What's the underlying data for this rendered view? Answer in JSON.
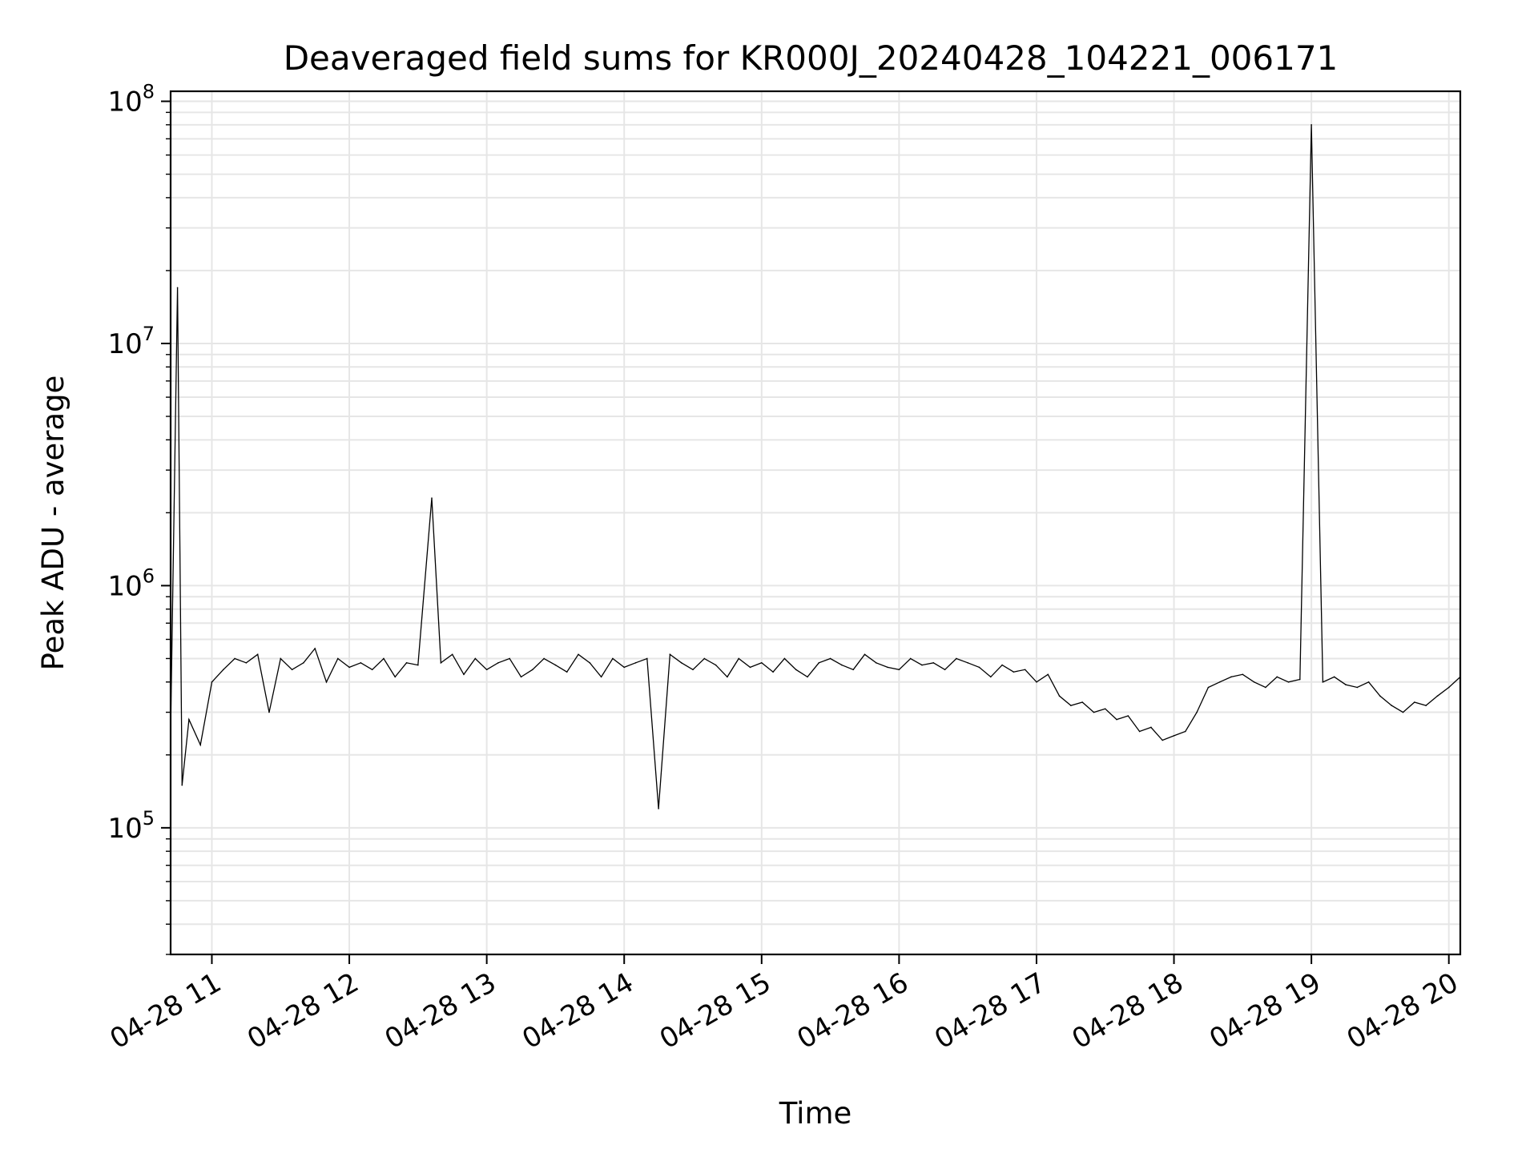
{
  "chart_data": {
    "type": "line",
    "title": "Deaveraged field sums for KR000J_20240428_104221_006171",
    "xlabel": "Time",
    "ylabel": "Peak ADU - average",
    "y_scale": "log",
    "ylim": [
      30000,
      110000000
    ],
    "xlim": [
      "2024-04-28T10:42",
      "2024-04-28T20:05"
    ],
    "grid": true,
    "x_ticks": [
      "04-28 11",
      "04-28 12",
      "04-28 13",
      "04-28 14",
      "04-28 15",
      "04-28 16",
      "04-28 17",
      "04-28 18",
      "04-28 19",
      "04-28 20"
    ],
    "x_tick_times": [
      "2024-04-28T11:00",
      "2024-04-28T12:00",
      "2024-04-28T13:00",
      "2024-04-28T14:00",
      "2024-04-28T15:00",
      "2024-04-28T16:00",
      "2024-04-28T17:00",
      "2024-04-28T18:00",
      "2024-04-28T19:00",
      "2024-04-28T20:00"
    ],
    "y_ticks": [
      {
        "base": "10",
        "exp": "5",
        "value": 100000
      },
      {
        "base": "10",
        "exp": "6",
        "value": 1000000
      },
      {
        "base": "10",
        "exp": "7",
        "value": 10000000
      },
      {
        "base": "10",
        "exp": "8",
        "value": 100000000
      }
    ],
    "series": [
      {
        "color": "#000000",
        "x": [
          "2024-04-28T10:42",
          "2024-04-28T10:45",
          "2024-04-28T10:47",
          "2024-04-28T10:50",
          "2024-04-28T10:55",
          "2024-04-28T11:00",
          "2024-04-28T11:05",
          "2024-04-28T11:10",
          "2024-04-28T11:15",
          "2024-04-28T11:20",
          "2024-04-28T11:25",
          "2024-04-28T11:30",
          "2024-04-28T11:35",
          "2024-04-28T11:40",
          "2024-04-28T11:45",
          "2024-04-28T11:50",
          "2024-04-28T11:55",
          "2024-04-28T12:00",
          "2024-04-28T12:05",
          "2024-04-28T12:10",
          "2024-04-28T12:15",
          "2024-04-28T12:20",
          "2024-04-28T12:25",
          "2024-04-28T12:30",
          "2024-04-28T12:36",
          "2024-04-28T12:40",
          "2024-04-28T12:45",
          "2024-04-28T12:50",
          "2024-04-28T12:55",
          "2024-04-28T13:00",
          "2024-04-28T13:05",
          "2024-04-28T13:10",
          "2024-04-28T13:15",
          "2024-04-28T13:20",
          "2024-04-28T13:25",
          "2024-04-28T13:30",
          "2024-04-28T13:35",
          "2024-04-28T13:40",
          "2024-04-28T13:45",
          "2024-04-28T13:50",
          "2024-04-28T13:55",
          "2024-04-28T14:00",
          "2024-04-28T14:05",
          "2024-04-28T14:10",
          "2024-04-28T14:15",
          "2024-04-28T14:20",
          "2024-04-28T14:25",
          "2024-04-28T14:30",
          "2024-04-28T14:35",
          "2024-04-28T14:40",
          "2024-04-28T14:45",
          "2024-04-28T14:50",
          "2024-04-28T14:55",
          "2024-04-28T15:00",
          "2024-04-28T15:05",
          "2024-04-28T15:10",
          "2024-04-28T15:15",
          "2024-04-28T15:20",
          "2024-04-28T15:25",
          "2024-04-28T15:30",
          "2024-04-28T15:35",
          "2024-04-28T15:40",
          "2024-04-28T15:45",
          "2024-04-28T15:50",
          "2024-04-28T15:55",
          "2024-04-28T16:00",
          "2024-04-28T16:05",
          "2024-04-28T16:10",
          "2024-04-28T16:15",
          "2024-04-28T16:20",
          "2024-04-28T16:25",
          "2024-04-28T16:30",
          "2024-04-28T16:35",
          "2024-04-28T16:40",
          "2024-04-28T16:45",
          "2024-04-28T16:50",
          "2024-04-28T16:55",
          "2024-04-28T17:00",
          "2024-04-28T17:05",
          "2024-04-28T17:10",
          "2024-04-28T17:15",
          "2024-04-28T17:20",
          "2024-04-28T17:25",
          "2024-04-28T17:30",
          "2024-04-28T17:35",
          "2024-04-28T17:40",
          "2024-04-28T17:45",
          "2024-04-28T17:50",
          "2024-04-28T17:55",
          "2024-04-28T18:00",
          "2024-04-28T18:05",
          "2024-04-28T18:10",
          "2024-04-28T18:15",
          "2024-04-28T18:20",
          "2024-04-28T18:25",
          "2024-04-28T18:30",
          "2024-04-28T18:35",
          "2024-04-28T18:40",
          "2024-04-28T18:45",
          "2024-04-28T18:50",
          "2024-04-28T18:55",
          "2024-04-28T19:00",
          "2024-04-28T19:05",
          "2024-04-28T19:10",
          "2024-04-28T19:15",
          "2024-04-28T19:20",
          "2024-04-28T19:25",
          "2024-04-28T19:30",
          "2024-04-28T19:35",
          "2024-04-28T19:40",
          "2024-04-28T19:45",
          "2024-04-28T19:50",
          "2024-04-28T19:55",
          "2024-04-28T20:00",
          "2024-04-28T20:05"
        ],
        "values": [
          250000,
          17000000,
          150000,
          280000,
          220000,
          400000,
          450000,
          500000,
          480000,
          520000,
          300000,
          500000,
          450000,
          480000,
          550000,
          400000,
          500000,
          460000,
          480000,
          450000,
          500000,
          420000,
          480000,
          470000,
          2300000,
          480000,
          520000,
          430000,
          500000,
          450000,
          480000,
          500000,
          420000,
          450000,
          500000,
          470000,
          440000,
          520000,
          480000,
          420000,
          500000,
          460000,
          480000,
          500000,
          120000,
          520000,
          480000,
          450000,
          500000,
          470000,
          420000,
          500000,
          460000,
          480000,
          440000,
          500000,
          450000,
          420000,
          480000,
          500000,
          470000,
          450000,
          520000,
          480000,
          460000,
          450000,
          500000,
          470000,
          480000,
          450000,
          500000,
          480000,
          460000,
          420000,
          470000,
          440000,
          450000,
          400000,
          430000,
          350000,
          320000,
          330000,
          300000,
          310000,
          280000,
          290000,
          250000,
          260000,
          230000,
          240000,
          250000,
          300000,
          380000,
          400000,
          420000,
          430000,
          400000,
          380000,
          420000,
          400000,
          410000,
          80000000,
          400000,
          420000,
          390000,
          380000,
          400000,
          350000,
          320000,
          300000,
          330000,
          320000,
          350000,
          380000,
          420000
        ]
      }
    ]
  }
}
